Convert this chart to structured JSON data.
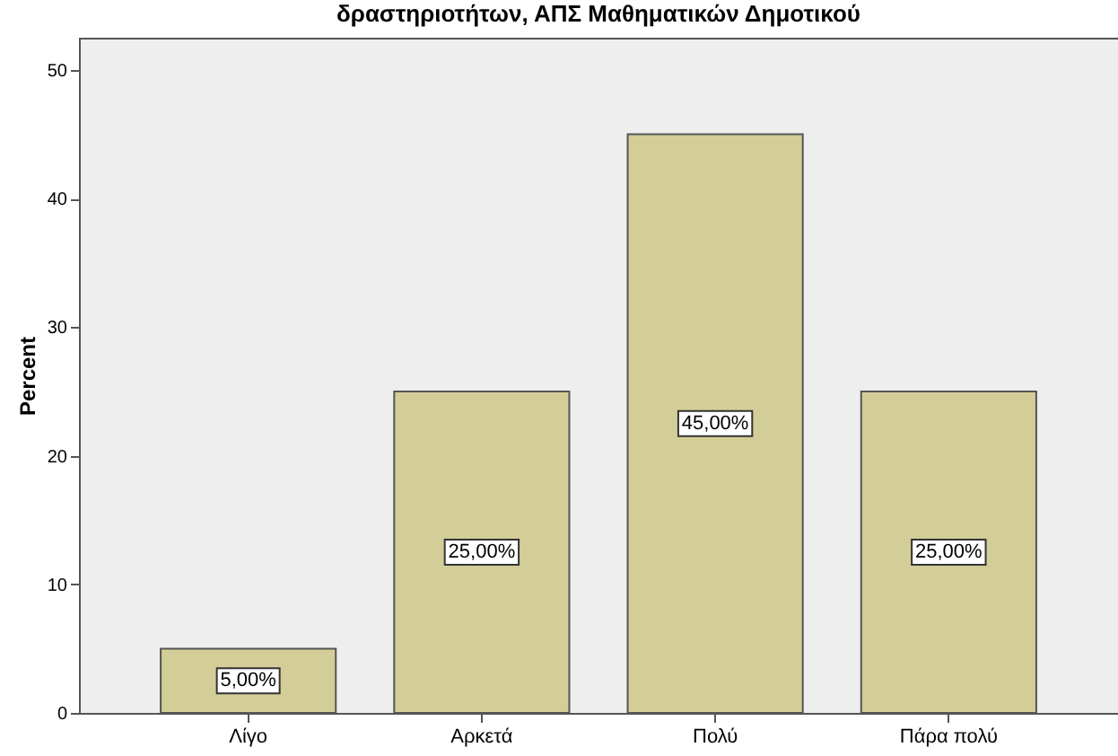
{
  "chart_data": {
    "type": "bar",
    "title": "δραστηριοτήτων, ΑΠΣ Μαθηματικών Δημοτικού",
    "ylabel": "Percent",
    "categories": [
      "Λίγο",
      "Αρκετά",
      "Πολύ",
      "Πάρα πολύ"
    ],
    "values": [
      5,
      25,
      45,
      25
    ],
    "value_labels": [
      "5,00%",
      "25,00%",
      "45,00%",
      "25,00%"
    ],
    "color": "#d3ce97",
    "ylim": [
      0,
      52.5
    ],
    "yticks": [
      0,
      10,
      20,
      30,
      40,
      50
    ],
    "grid": false
  }
}
